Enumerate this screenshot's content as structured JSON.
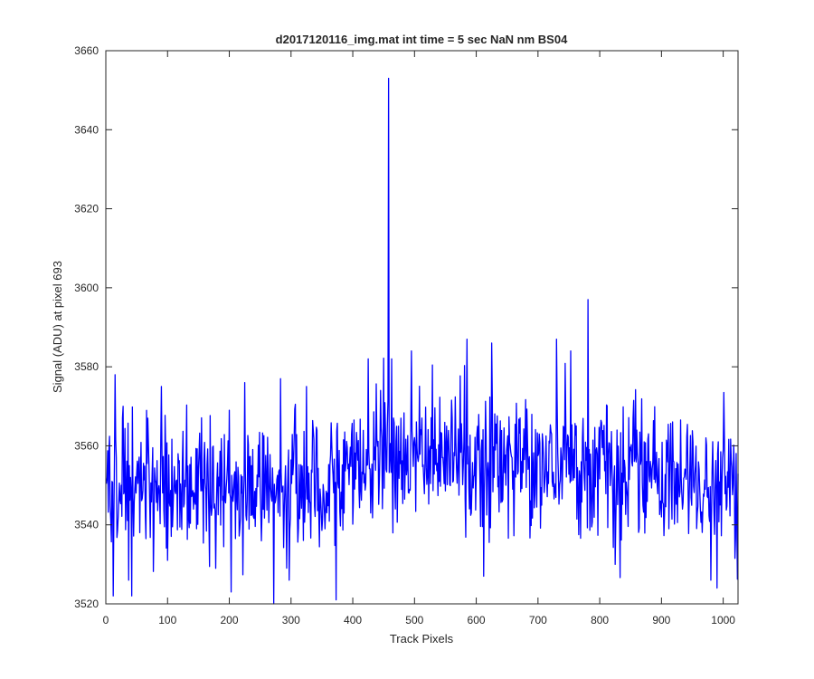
{
  "chart_data": {
    "type": "line",
    "title": "d2017120116_img.mat int time = 5 sec  NaN nm BS04",
    "xlabel": "Track Pixels",
    "ylabel": "Signal (ADU) at pixel 693",
    "xlim": [
      0,
      1024
    ],
    "ylim": [
      3520,
      3660
    ],
    "xticks": [
      0,
      100,
      200,
      300,
      400,
      500,
      600,
      700,
      800,
      900,
      1000
    ],
    "yticks": [
      3520,
      3540,
      3560,
      3580,
      3600,
      3620,
      3640,
      3660
    ],
    "grid": false,
    "box": true,
    "series": [
      {
        "color": "#0000ff",
        "noise": {
          "n_points": 1024,
          "std": 8
        },
        "baseline": [
          {
            "x": 1,
            "y": 3549
          },
          {
            "x": 300,
            "y": 3550
          },
          {
            "x": 400,
            "y": 3553
          },
          {
            "x": 430,
            "y": 3558
          },
          {
            "x": 500,
            "y": 3558
          },
          {
            "x": 600,
            "y": 3556
          },
          {
            "x": 700,
            "y": 3556
          },
          {
            "x": 800,
            "y": 3554
          },
          {
            "x": 900,
            "y": 3552
          },
          {
            "x": 1024,
            "y": 3549
          }
        ],
        "points": [
          {
            "x": 12,
            "y": 3522
          },
          {
            "x": 15,
            "y": 3578
          },
          {
            "x": 28,
            "y": 3570
          },
          {
            "x": 42,
            "y": 3522
          },
          {
            "x": 68,
            "y": 3567
          },
          {
            "x": 90,
            "y": 3575
          },
          {
            "x": 100,
            "y": 3531
          },
          {
            "x": 178,
            "y": 3529
          },
          {
            "x": 200,
            "y": 3569
          },
          {
            "x": 203,
            "y": 3523
          },
          {
            "x": 225,
            "y": 3576
          },
          {
            "x": 272,
            "y": 3520
          },
          {
            "x": 325,
            "y": 3575
          },
          {
            "x": 373,
            "y": 3521
          },
          {
            "x": 425,
            "y": 3582
          },
          {
            "x": 445,
            "y": 3574
          },
          {
            "x": 458,
            "y": 3653
          },
          {
            "x": 463,
            "y": 3582
          },
          {
            "x": 495,
            "y": 3584
          },
          {
            "x": 585,
            "y": 3587
          },
          {
            "x": 612,
            "y": 3527
          },
          {
            "x": 730,
            "y": 3587
          },
          {
            "x": 753,
            "y": 3584
          },
          {
            "x": 781,
            "y": 3597
          },
          {
            "x": 825,
            "y": 3530
          },
          {
            "x": 980,
            "y": 3526
          },
          {
            "x": 990,
            "y": 3524
          }
        ]
      }
    ]
  }
}
